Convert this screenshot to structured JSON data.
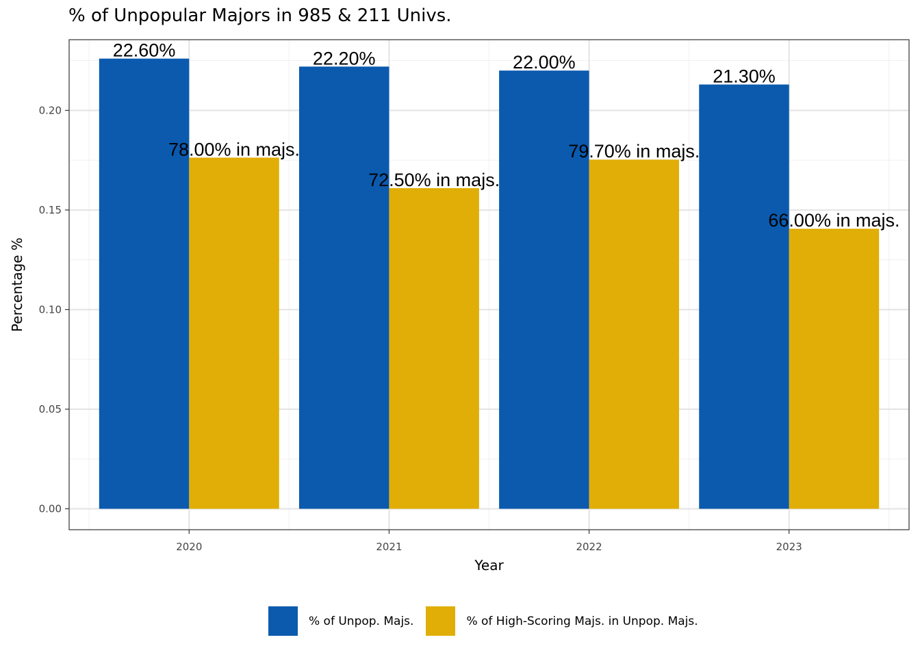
{
  "title": "% of Unpopular Majors in 985 & 211 Univs.",
  "chart_data": {
    "type": "bar",
    "title": "% of Unpopular Majors in 985 & 211 Univs.",
    "xlabel": "Year",
    "ylabel": "Percentage %",
    "categories": [
      "2020",
      "2021",
      "2022",
      "2023"
    ],
    "ylim": [
      -0.0105,
      0.2355
    ],
    "yticks": [
      "0.00",
      "0.05",
      "0.10",
      "0.15",
      "0.20"
    ],
    "yticks_values": [
      0.0,
      0.05,
      0.1,
      0.15,
      0.2
    ],
    "grid": true,
    "legend_position": "bottom",
    "series": [
      {
        "name": "% of Unpop. Majs.",
        "color": "#0b5aae",
        "values": [
          0.226,
          0.222,
          0.22,
          0.213
        ],
        "labels": [
          "22.60%",
          "22.20%",
          "22.00%",
          "21.30%"
        ]
      },
      {
        "name": "% of High-Scoring Majs. in Unpop. Majs.",
        "color": "#e0ae07",
        "values": [
          0.1763,
          0.161,
          0.1753,
          0.1406
        ],
        "labels": [
          "78.00% in majs.",
          "72.50% in majs.",
          "79.70% in majs.",
          "66.00% in majs."
        ]
      }
    ]
  }
}
